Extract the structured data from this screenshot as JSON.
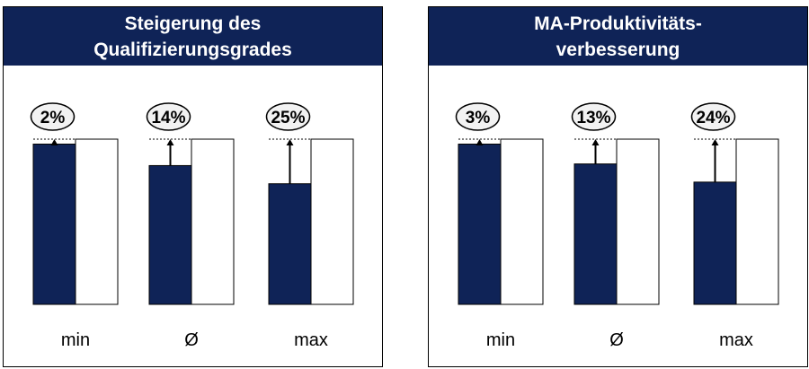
{
  "chart_data": [
    {
      "type": "bar",
      "title_lines": [
        "Steigerung des",
        "Qualifizierungsgrades"
      ],
      "categories": [
        "min",
        "Ø",
        "max"
      ],
      "series": [
        {
          "values": [
            97,
            84,
            73
          ],
          "color": "#0f2357"
        },
        {
          "values": [
            100,
            100,
            100
          ],
          "color": "#ffffff"
        }
      ],
      "annotations": [
        "2%",
        "14%",
        "25%"
      ],
      "ylim": [
        0,
        100
      ],
      "grid": false
    },
    {
      "type": "bar",
      "title_lines": [
        "MA-Produktivitäts-",
        "verbesserung"
      ],
      "categories": [
        "min",
        "Ø",
        "max"
      ],
      "series": [
        {
          "values": [
            97,
            85,
            74
          ],
          "color": "#0f2357"
        },
        {
          "values": [
            100,
            100,
            100
          ],
          "color": "#ffffff"
        }
      ],
      "annotations": [
        "3%",
        "13%",
        "24%"
      ],
      "ylim": [
        0,
        100
      ],
      "grid": false
    }
  ]
}
